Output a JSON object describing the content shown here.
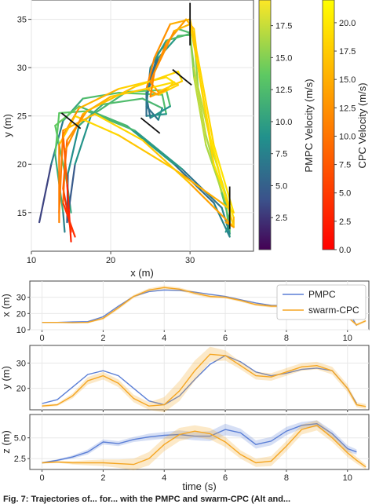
{
  "caption": "Fig. 7: Trajectories of... for... with the PMPC and swarm-CPC (Alt and...",
  "chart_data": [
    {
      "type": "line",
      "xlabel": "x (m)",
      "ylabel": "y (m)",
      "xlim": [
        10,
        38
      ],
      "ylim": [
        11,
        37
      ],
      "xticks": [
        10,
        20,
        30
      ],
      "yticks": [
        15,
        20,
        25,
        30,
        35
      ],
      "grid": true,
      "colorbars": [
        {
          "label": "PMPC Velocity (m/s)",
          "range": [
            0,
            19.5
          ],
          "ticks": [
            "2.5",
            "5.0",
            "7.5",
            "10.0",
            "12.5",
            "15.0",
            "17.5"
          ],
          "colormap": "viridis"
        },
        {
          "label": "CPC Velocity (m/s)",
          "range": [
            0,
            22
          ],
          "ticks": [
            "0.0",
            "2.5",
            "5.0",
            "7.5",
            "10.0",
            "12.5",
            "15.0",
            "17.5",
            "20.0"
          ],
          "colormap": "autumn"
        }
      ],
      "gates": [
        {
          "x": 15,
          "y": 24.5,
          "orientation": "diagonal"
        },
        {
          "x": 25,
          "y": 24,
          "orientation": "diagonal"
        },
        {
          "x": 30,
          "y": 34.5,
          "orientation": "vertical"
        },
        {
          "x": 35,
          "y": 15.5,
          "orientation": "vertical"
        },
        {
          "x": 29,
          "y": 29,
          "orientation": "diagonal"
        }
      ],
      "series": [
        {
          "name": "PMPC",
          "colormap": "viridis",
          "laps": [
            {
              "x": [
                11,
                12.5,
                14,
                16.5,
                21,
                26.5,
                27,
                24.5,
                24.5,
                26,
                28.5,
                30,
                30.5,
                32,
                34.5,
                35,
                33,
                28,
                22,
                16,
                13,
                14.5,
                15
              ],
              "y": [
                14,
                20,
                24.5,
                26.8,
                27.4,
                27.2,
                25.2,
                25,
                27.5,
                31.5,
                34,
                33.6,
                29,
                22,
                16,
                12.5,
                16,
                20,
                24,
                26,
                24,
                18,
                15
              ],
              "v": [
                2,
                6,
                10,
                13,
                14,
                15,
                12,
                8,
                6,
                8,
                12,
                15,
                17,
                18,
                16,
                12,
                5,
                9,
                12,
                14,
                16,
                13,
                10
              ]
            },
            {
              "x": [
                14.5,
                15.5,
                17.5,
                22,
                27,
                27.5,
                25,
                24.5,
                26,
                28.5,
                30.5,
                31,
                33,
                35,
                35,
                34,
                29,
                23,
                17,
                13.5,
                13,
                14,
                14.2
              ],
              "y": [
                14,
                20,
                25,
                27.5,
                27.7,
                26,
                24.8,
                27,
                31,
                33.3,
                33.4,
                28,
                21,
                15.5,
                12.8,
                15.5,
                19.5,
                23.5,
                25.5,
                25.3,
                21,
                15,
                13
              ],
              "v": [
                3,
                8,
                12,
                14,
                15,
                12,
                8,
                6,
                9,
                12,
                15,
                17,
                18,
                16,
                12,
                6,
                9,
                12,
                14,
                15,
                14,
                10,
                7
              ]
            },
            {
              "x": [
                14.5,
                14.6,
                16,
                19,
                24,
                26.5,
                26,
                24.5,
                25,
                27,
                30,
                30.5,
                32,
                34,
                35,
                34.5
              ],
              "y": [
                14,
                19,
                24,
                26.2,
                26.8,
                25.8,
                24.6,
                26,
                30,
                32.8,
                33.5,
                30,
                23,
                17,
                14,
                13
              ],
              "v": [
                4,
                8,
                11,
                13,
                14,
                12,
                8,
                7,
                9,
                12,
                15,
                17,
                18,
                16,
                12,
                8
              ]
            }
          ]
        },
        {
          "name": "swarm-CPC",
          "colormap": "autumn",
          "laps": [
            {
              "x": [
                15,
                14.5,
                14,
                16,
                21,
                27,
                28.5,
                26,
                24.5,
                25.5,
                27.5,
                30,
                31,
                33,
                35.5,
                34,
                28,
                21,
                15.5,
                13.5,
                13.5
              ],
              "y": [
                12,
                18,
                23,
                25.8,
                27.8,
                29,
                28.2,
                27.2,
                27.8,
                31,
                34.5,
                35,
                31,
                22,
                15,
                16,
                19.5,
                23,
                25,
                22,
                14
              ],
              "v": [
                1,
                5,
                10,
                14,
                17,
                19,
                20,
                16,
                12,
                11,
                14,
                16,
                18,
                19,
                20,
                14,
                16,
                18,
                19,
                14,
                8
              ]
            },
            {
              "x": [
                15,
                14,
                14.5,
                17,
                23,
                28.5,
                29,
                26,
                25,
                27,
                29.5,
                30.5,
                31.2,
                33,
                35.5,
                35.5,
                30,
                24,
                18,
                14,
                13.5
              ],
              "y": [
                13,
                17.5,
                22.5,
                25.5,
                28,
                29.6,
                28.6,
                27.5,
                28.5,
                32.5,
                35,
                34,
                29,
                20,
                14.5,
                13.5,
                18,
                22.5,
                25.2,
                23.5,
                15
              ],
              "v": [
                2,
                6,
                11,
                15,
                18,
                19,
                20,
                15,
                12,
                12,
                15,
                17,
                18,
                19,
                20,
                12,
                16,
                18,
                19,
                13,
                8
              ]
            },
            {
              "x": [
                15.5,
                14,
                14.3,
                16.5,
                20,
                25,
                28,
                27,
                25,
                25.5,
                28,
                30,
                30.8,
                32.5,
                34.5,
                35.5,
                34.5
              ],
              "y": [
                12.5,
                16,
                21.5,
                25.2,
                27,
                27.9,
                28.5,
                27.7,
                27,
                29.5,
                33.8,
                34.5,
                31,
                23,
                16.5,
                13.5,
                14
              ],
              "v": [
                2,
                6,
                11,
                14,
                17,
                18,
                20,
                17,
                12,
                11,
                14,
                17,
                18,
                19,
                20,
                16,
                12
              ]
            }
          ]
        }
      ]
    },
    {
      "type": "line",
      "ylabel": "x (m)",
      "xlim": [
        -0.4,
        10.7
      ],
      "ylim": [
        10,
        40
      ],
      "xticks": [
        0,
        2,
        4,
        6,
        8,
        10
      ],
      "yticks": [
        10,
        20,
        30
      ],
      "grid": true,
      "legend": {
        "position": "top-right",
        "entries": [
          "PMPC",
          "swarm-CPC"
        ]
      },
      "series": [
        {
          "name": "PMPC",
          "color": "#5b7fd6",
          "x": [
            0,
            0.5,
            1,
            1.5,
            2,
            2.5,
            3,
            3.5,
            4,
            4.5,
            5,
            5.5,
            6,
            6.5,
            7,
            7.5,
            8,
            8.5,
            9,
            9.5,
            10,
            10.3
          ],
          "y": [
            14.5,
            14.5,
            14.8,
            15,
            18,
            24.5,
            30.5,
            33.5,
            34.5,
            34.2,
            33.2,
            31.8,
            30.5,
            28.5,
            26.5,
            25,
            24.8,
            26.5,
            28.5,
            28.5,
            22.5,
            12.5
          ]
        },
        {
          "name": "swarm-CPC",
          "color": "#f5a623",
          "x": [
            0,
            0.5,
            1,
            1.5,
            2,
            2.5,
            3,
            3.5,
            4,
            4.5,
            5,
            5.5,
            6,
            6.5,
            7,
            7.5,
            8,
            8.5,
            9,
            9.5,
            10,
            10.3,
            10.6
          ],
          "y": [
            14.5,
            14.5,
            14.3,
            14.5,
            17,
            23.5,
            30.5,
            34.5,
            36,
            35,
            32.5,
            30.5,
            30,
            28,
            25.5,
            24.5,
            24.5,
            26,
            28.5,
            29.5,
            18,
            13,
            15.5
          ],
          "band": [
            0,
            0,
            0,
            0.5,
            0.8,
            1,
            1,
            1,
            1.2,
            1,
            1,
            1,
            0.8,
            0.8,
            0.8,
            0.8,
            0.8,
            1,
            1,
            1,
            1,
            0.8,
            0.8
          ]
        }
      ]
    },
    {
      "type": "line",
      "ylabel": "y (m)",
      "xlim": [
        -0.4,
        10.7
      ],
      "ylim": [
        11.5,
        37
      ],
      "xticks": [
        0,
        2,
        4,
        6,
        8,
        10
      ],
      "yticks": [
        20,
        30
      ],
      "grid": true,
      "series": [
        {
          "name": "PMPC",
          "color": "#5b7fd6",
          "x": [
            0,
            0.5,
            1,
            1.5,
            2,
            2.5,
            3,
            3.5,
            4,
            4.5,
            5,
            5.5,
            6,
            6.5,
            7,
            7.5,
            8,
            8.5,
            9,
            9.5,
            10,
            10.3
          ],
          "y": [
            14,
            15.5,
            20.5,
            25.5,
            27,
            25,
            20,
            15,
            13.5,
            17,
            23.5,
            29.5,
            33,
            30.5,
            26.5,
            25,
            26,
            27.5,
            28,
            27,
            20,
            14
          ]
        },
        {
          "name": "swarm-CPC",
          "color": "#f5a623",
          "x": [
            0,
            0.5,
            1,
            1.5,
            2,
            2.5,
            3,
            3.5,
            4,
            4.5,
            5,
            5.5,
            6,
            6.5,
            7,
            7.5,
            8,
            8.5,
            9,
            9.5,
            10,
            10.3,
            10.6
          ],
          "y": [
            13,
            13.5,
            17,
            23,
            25,
            22,
            16,
            13,
            13.5,
            19,
            27,
            33.5,
            33,
            29,
            25,
            24.5,
            26.5,
            28.5,
            29,
            27,
            20,
            13.5,
            12.8
          ],
          "band": [
            0.5,
            0.5,
            1,
            1.5,
            1.5,
            1.5,
            1.5,
            1.5,
            3,
            4,
            4,
            3,
            2,
            1.5,
            1.5,
            1.5,
            1.5,
            1.5,
            1.5,
            1.5,
            1.5,
            1,
            1
          ]
        }
      ]
    },
    {
      "type": "line",
      "ylabel": "z (m)",
      "xlabel": "time (s)",
      "xlim": [
        -0.4,
        10.7
      ],
      "ylim": [
        1.2,
        7.8
      ],
      "xticks": [
        0,
        2,
        4,
        6,
        8,
        10
      ],
      "yticks": [
        "2.5",
        "5.0"
      ],
      "grid": true,
      "series": [
        {
          "name": "PMPC",
          "color": "#5b7fd6",
          "x": [
            0,
            0.5,
            1,
            1.5,
            2,
            2.5,
            3,
            3.5,
            4,
            4.5,
            5,
            5.5,
            6,
            6.5,
            7,
            7.5,
            8,
            8.5,
            9,
            9.5,
            10,
            10.3
          ],
          "y": [
            2,
            2.3,
            2.7,
            3.3,
            4.5,
            4.3,
            4.8,
            5.1,
            5.3,
            5.4,
            5.2,
            5.2,
            6,
            5.6,
            4.2,
            4.6,
            5.8,
            6.5,
            6.7,
            5.5,
            3.7,
            3.3
          ],
          "band": [
            0.1,
            0.1,
            0.2,
            0.3,
            0.3,
            0.3,
            0.3,
            0.4,
            0.4,
            0.5,
            0.5,
            0.6,
            0.7,
            0.5,
            0.5,
            0.5,
            0.5,
            0.4,
            0.4,
            0.4,
            0.4,
            0.3
          ]
        },
        {
          "name": "swarm-CPC",
          "color": "#f5a623",
          "x": [
            0,
            0.5,
            1,
            1.5,
            2,
            2.5,
            3,
            3.5,
            4,
            4.5,
            5,
            5.5,
            6,
            6.5,
            7,
            7.5,
            8,
            8.5,
            9,
            9.5,
            10,
            10.3,
            10.6
          ],
          "y": [
            2,
            2.1,
            2.0,
            2.0,
            2.0,
            1.9,
            1.8,
            2.5,
            4.2,
            5.4,
            5.8,
            5.5,
            4.5,
            3.0,
            2.0,
            2.2,
            4.0,
            6.0,
            6.5,
            5.0,
            3.2,
            2.3,
            1.5
          ],
          "band": [
            0.1,
            0.1,
            0.2,
            0.3,
            0.4,
            0.5,
            0.7,
            0.8,
            0.8,
            0.8,
            0.7,
            0.7,
            0.6,
            0.5,
            0.5,
            0.6,
            0.6,
            0.6,
            0.6,
            0.5,
            0.5,
            0.4,
            0.3
          ]
        }
      ]
    }
  ]
}
